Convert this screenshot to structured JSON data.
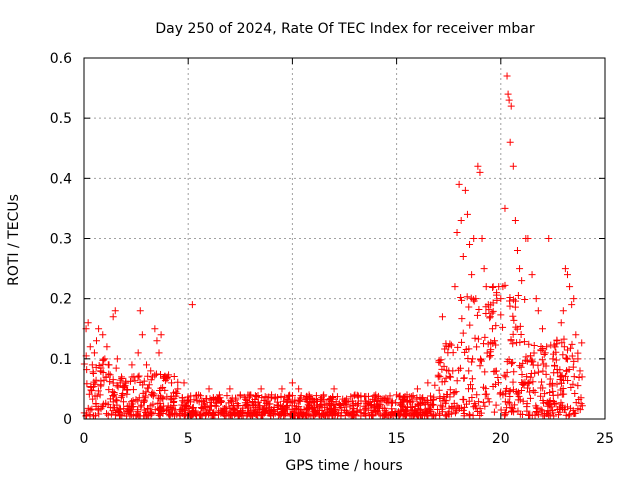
{
  "chart_data": {
    "type": "scatter",
    "title": "Day 250 of 2024, Rate Of TEC Index for receiver mbar",
    "xlabel": "GPS time / hours",
    "ylabel": "ROTI / TECUs",
    "xlim": [
      0,
      25
    ],
    "ylim": [
      0,
      0.6
    ],
    "x_ticks": [
      0,
      5,
      10,
      15,
      20,
      25
    ],
    "y_ticks": [
      0,
      0.1,
      0.2,
      0.3,
      0.4,
      0.5,
      0.6
    ],
    "x_tick_labels": [
      "0",
      "5",
      "10",
      "15",
      "20",
      "25"
    ],
    "y_tick_labels": [
      "0",
      "0.1",
      "0.2",
      "0.3",
      "0.4",
      "0.5",
      "0.6"
    ],
    "grid": true,
    "marker": "+",
    "color": "#ff0000",
    "series": [
      {
        "name": "ROTI",
        "points": [
          [
            0.1,
            0.15
          ],
          [
            0.2,
            0.16
          ],
          [
            0.3,
            0.12
          ],
          [
            0.4,
            0.09
          ],
          [
            0.5,
            0.11
          ],
          [
            0.6,
            0.13
          ],
          [
            0.7,
            0.15
          ],
          [
            0.8,
            0.08
          ],
          [
            0.9,
            0.14
          ],
          [
            1.0,
            0.1
          ],
          [
            1.1,
            0.12
          ],
          [
            1.2,
            0.09
          ],
          [
            1.4,
            0.17
          ],
          [
            1.5,
            0.18
          ],
          [
            1.6,
            0.1
          ],
          [
            1.8,
            0.07
          ],
          [
            2.0,
            0.06
          ],
          [
            2.3,
            0.09
          ],
          [
            2.6,
            0.11
          ],
          [
            2.7,
            0.18
          ],
          [
            2.8,
            0.14
          ],
          [
            3.0,
            0.09
          ],
          [
            3.2,
            0.08
          ],
          [
            3.4,
            0.15
          ],
          [
            3.5,
            0.13
          ],
          [
            3.6,
            0.11
          ],
          [
            3.7,
            0.14
          ],
          [
            3.9,
            0.07
          ],
          [
            4.2,
            0.06
          ],
          [
            4.5,
            0.05
          ],
          [
            4.8,
            0.06
          ],
          [
            5.2,
            0.19
          ],
          [
            5.5,
            0.04
          ],
          [
            6.0,
            0.05
          ],
          [
            6.5,
            0.04
          ],
          [
            7.0,
            0.05
          ],
          [
            7.5,
            0.04
          ],
          [
            8.0,
            0.04
          ],
          [
            8.5,
            0.05
          ],
          [
            9.0,
            0.04
          ],
          [
            9.5,
            0.05
          ],
          [
            10.0,
            0.06
          ],
          [
            10.3,
            0.05
          ],
          [
            10.8,
            0.04
          ],
          [
            11.5,
            0.04
          ],
          [
            12.0,
            0.05
          ],
          [
            12.5,
            0.03
          ],
          [
            13.0,
            0.04
          ],
          [
            13.5,
            0.03
          ],
          [
            14.0,
            0.04
          ],
          [
            14.5,
            0.03
          ],
          [
            15.0,
            0.04
          ],
          [
            15.5,
            0.04
          ],
          [
            16.0,
            0.05
          ],
          [
            16.5,
            0.06
          ],
          [
            17.0,
            0.07
          ],
          [
            17.2,
            0.17
          ],
          [
            17.5,
            0.12
          ],
          [
            17.8,
            0.22
          ],
          [
            17.9,
            0.31
          ],
          [
            18.0,
            0.39
          ],
          [
            18.1,
            0.33
          ],
          [
            18.2,
            0.27
          ],
          [
            18.3,
            0.38
          ],
          [
            18.4,
            0.34
          ],
          [
            18.5,
            0.29
          ],
          [
            18.6,
            0.24
          ],
          [
            18.7,
            0.3
          ],
          [
            18.8,
            0.2
          ],
          [
            18.9,
            0.42
          ],
          [
            19.0,
            0.41
          ],
          [
            19.1,
            0.3
          ],
          [
            19.2,
            0.25
          ],
          [
            19.3,
            0.22
          ],
          [
            19.4,
            0.19
          ],
          [
            19.5,
            0.17
          ],
          [
            19.6,
            0.15
          ],
          [
            19.7,
            0.13
          ],
          [
            19.8,
            0.21
          ],
          [
            19.9,
            0.22
          ],
          [
            20.0,
            0.2
          ],
          [
            20.1,
            0.22
          ],
          [
            20.2,
            0.35
          ],
          [
            20.3,
            0.57
          ],
          [
            20.35,
            0.54
          ],
          [
            20.4,
            0.53
          ],
          [
            20.5,
            0.52
          ],
          [
            20.45,
            0.46
          ],
          [
            20.6,
            0.42
          ],
          [
            20.7,
            0.33
          ],
          [
            20.8,
            0.28
          ],
          [
            20.9,
            0.25
          ],
          [
            21.0,
            0.23
          ],
          [
            21.2,
            0.3
          ],
          [
            21.3,
            0.3
          ],
          [
            21.5,
            0.24
          ],
          [
            21.7,
            0.2
          ],
          [
            21.8,
            0.18
          ],
          [
            22.0,
            0.15
          ],
          [
            22.2,
            0.12
          ],
          [
            22.3,
            0.3
          ],
          [
            22.5,
            0.1
          ],
          [
            22.7,
            0.13
          ],
          [
            22.9,
            0.16
          ],
          [
            23.0,
            0.18
          ],
          [
            23.1,
            0.25
          ],
          [
            23.2,
            0.24
          ],
          [
            23.3,
            0.22
          ],
          [
            23.4,
            0.19
          ],
          [
            23.5,
            0.2
          ],
          [
            23.6,
            0.14
          ],
          [
            23.7,
            0.1
          ],
          [
            23.8,
            0.08
          ],
          [
            23.9,
            0.07
          ]
        ]
      }
    ]
  }
}
